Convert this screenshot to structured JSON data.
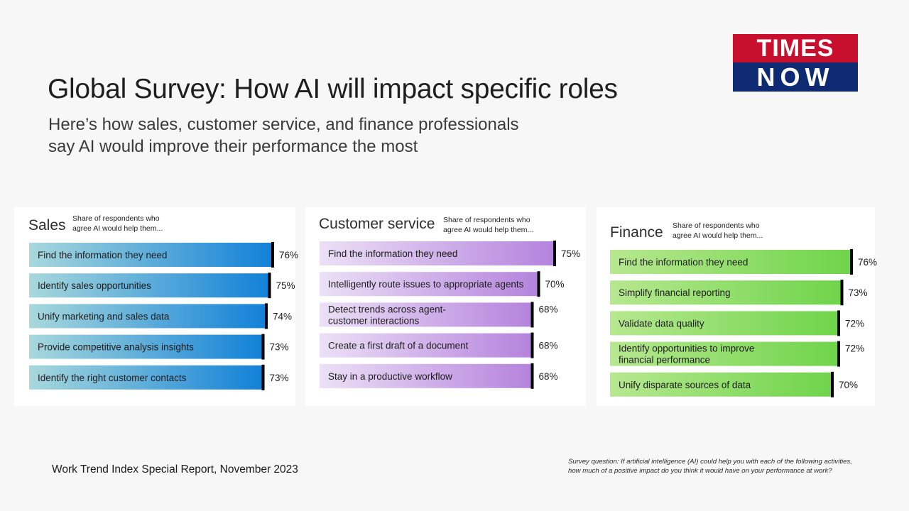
{
  "title": "Global Survey: How AI will impact specific roles",
  "subtitle": {
    "line1": "Here’s how sales, customer service, and finance professionals",
    "line2": "say AI would improve their performance the most"
  },
  "logo": {
    "top": "TIMES",
    "bottom": "NOW"
  },
  "chart_data": [
    {
      "type": "bar",
      "title": "Sales",
      "caption": [
        "Share of respondents who",
        "agree AI would help them..."
      ],
      "categories": [
        [
          "Find the information they need"
        ],
        [
          "Identify sales opportunities"
        ],
        [
          "Unify marketing and sales data"
        ],
        [
          "Provide competitive analysis insights"
        ],
        [
          "Identify the right customer contacts"
        ]
      ],
      "values": [
        76,
        75,
        74,
        73,
        73
      ],
      "value_labels": [
        "76%",
        "75%",
        "74%",
        "73%",
        "73%"
      ],
      "colors": {
        "start": "#a8d8dc",
        "end": "#1281d8",
        "marker": "#000000"
      }
    },
    {
      "type": "bar",
      "title": "Customer service",
      "caption": [
        "Share of respondents who",
        "agree AI would help them..."
      ],
      "categories": [
        [
          "Find the information they need"
        ],
        [
          "Intelligently route issues to appropriate agents"
        ],
        [
          "Detect trends across agent-",
          "customer interactions"
        ],
        [
          "Create a first draft of a document"
        ],
        [
          "Stay in a productive workflow"
        ]
      ],
      "values": [
        75,
        70,
        68,
        68,
        68
      ],
      "value_labels": [
        "75%",
        "70%",
        "68%",
        "68%",
        "68%"
      ],
      "colors": {
        "start": "#ece0f6",
        "end": "#b583dd",
        "marker": "#000000"
      }
    },
    {
      "type": "bar",
      "title": "Finance",
      "caption": [
        "Share of respondents who",
        "agree AI would help them..."
      ],
      "categories": [
        [
          "Find the information they need"
        ],
        [
          "Simplify financial reporting"
        ],
        [
          "Validate data quality"
        ],
        [
          "Identify opportunities to improve",
          "financial performance"
        ],
        [
          "Unify disparate sources of data"
        ]
      ],
      "values": [
        76,
        73,
        72,
        72,
        70
      ],
      "value_labels": [
        "76%",
        "73%",
        "72%",
        "72%",
        "70%"
      ],
      "colors": {
        "start": "#b7e890",
        "end": "#6fd44a",
        "marker": "#000000"
      }
    }
  ],
  "footer": {
    "source": "Work Trend Index Special Report, November 2023",
    "question_line1": "Survey question: If artificial intelligence (AI) could help you with each of the following activities,",
    "question_line2": "how much of a positive impact do you think it would have on your performance at work?"
  }
}
